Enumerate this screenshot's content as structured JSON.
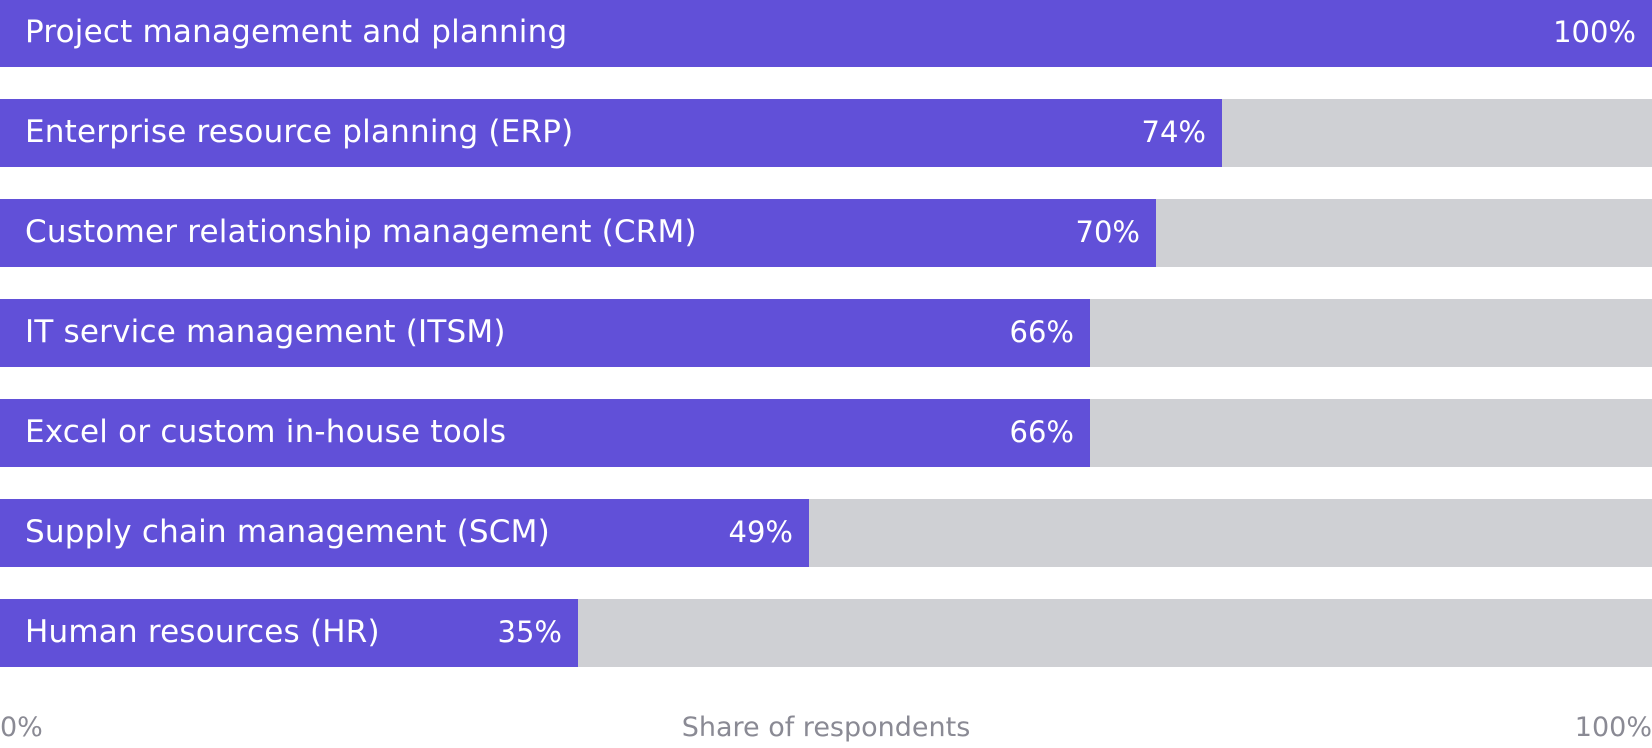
{
  "chart_data": {
    "type": "bar",
    "orientation": "horizontal",
    "categories": [
      "Project management and planning",
      "Enterprise resource planning (ERP)",
      "Customer relationship management (CRM)",
      "IT service management (ITSM)",
      "Excel or custom in-house tools",
      "Supply chain management (SCM)",
      "Human resources (HR)"
    ],
    "values": [
      100,
      74,
      70,
      66,
      66,
      49,
      35
    ],
    "value_labels": [
      "100%",
      "74%",
      "70%",
      "66%",
      "66%",
      "49%",
      "35%"
    ],
    "title": "",
    "xlabel": "Share of respondents",
    "ylabel": "",
    "xlim": [
      0,
      100
    ],
    "x_tick_labels": [
      "0%",
      "100%"
    ],
    "grid": false,
    "legend": "none",
    "colors": {
      "bar": "#6150d8",
      "track": "#cfd0d4",
      "label_text": "#ffffff",
      "axis_text": "#8a8a94"
    }
  }
}
